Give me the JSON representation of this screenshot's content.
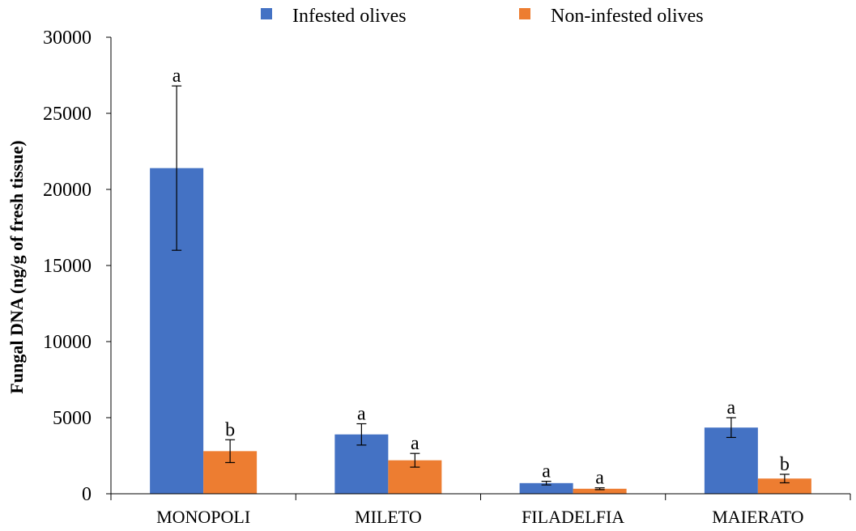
{
  "chart_data": {
    "type": "bar",
    "ylabel": "Fungal DNA (ng/g of fresh tissue)",
    "xlabel": "",
    "ylim": [
      0,
      30000
    ],
    "yticks": [
      0,
      5000,
      10000,
      15000,
      20000,
      25000,
      30000
    ],
    "grid": false,
    "legend_position": "top-center",
    "categories": [
      "MONOPOLI",
      "MILETO",
      "FILADELFIA",
      "MAIERATO"
    ],
    "series": [
      {
        "name": "Infested olives",
        "color": "#4472C4",
        "values": [
          21400,
          3900,
          700,
          4350
        ],
        "error": [
          5400,
          700,
          120,
          650
        ],
        "significance": [
          "a",
          "a",
          "a",
          "a"
        ]
      },
      {
        "name": "Non-infested olives",
        "color": "#ED7D31",
        "values": [
          2800,
          2200,
          330,
          1000
        ],
        "error": [
          750,
          450,
          60,
          280
        ],
        "significance": [
          "b",
          "a",
          "a",
          "b"
        ]
      }
    ]
  }
}
